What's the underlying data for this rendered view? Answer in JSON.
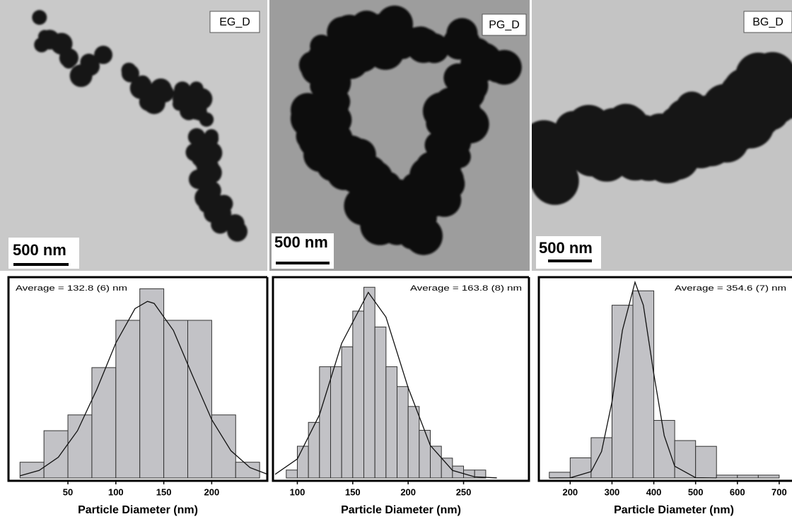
{
  "images": [
    {
      "label": "EG_D",
      "scale_bar": "500 nm"
    },
    {
      "label": "PG_D",
      "scale_bar": "500 nm"
    },
    {
      "label": "BG_D",
      "scale_bar": "500 nm"
    }
  ],
  "chart_data": [
    {
      "type": "histogram",
      "annotation": "Average = 132.8 (6) nm",
      "x_label": "Particle Diameter (nm)",
      "color": "#c2c2c6",
      "bins": [
        0,
        25,
        50,
        75,
        100,
        125,
        150,
        175,
        200,
        225,
        250
      ],
      "values": [
        1,
        3,
        4,
        7,
        10,
        12,
        10,
        10,
        4,
        1
      ],
      "curve": {
        "x": [
          0,
          20,
          40,
          60,
          80,
          100,
          120,
          133,
          140,
          160,
          180,
          200,
          220,
          240,
          258
        ],
        "y": [
          0.14,
          0.48,
          1.32,
          3.0,
          5.6,
          8.56,
          10.74,
          11.2,
          11.07,
          9.36,
          6.49,
          3.7,
          1.73,
          0.66,
          0.24
        ]
      },
      "xlim": [
        -12,
        258
      ],
      "xticks": [
        50,
        100,
        150,
        200
      ],
      "ylim": [
        0,
        12.6
      ]
    },
    {
      "type": "histogram",
      "annotation": "Average = 163.8 (8) nm",
      "x_label": "Particle Diameter (nm)",
      "color": "#c2c2c6",
      "bins": [
        90,
        100,
        110,
        120,
        130,
        140,
        150,
        160,
        170,
        180,
        190,
        200,
        210,
        220,
        230,
        240,
        250,
        260,
        270
      ],
      "values": [
        2,
        8,
        14,
        28,
        28,
        33,
        42,
        48,
        38,
        28,
        23,
        18,
        12,
        8,
        5,
        3,
        2,
        2
      ],
      "curve": {
        "x": [
          80,
          100,
          120,
          140,
          164,
          180,
          200,
          220,
          240,
          260,
          280
        ],
        "y": [
          0.93,
          4.8,
          15.9,
          33.9,
          46.7,
          40.5,
          22.7,
          8.2,
          1.9,
          0.28,
          0.03
        ]
      },
      "xlim": [
        78,
        309
      ],
      "xticks": [
        100,
        150,
        200,
        250
      ],
      "ylim": [
        0,
        50
      ]
    },
    {
      "type": "histogram",
      "annotation": "Average = 354.6 (7) nm",
      "x_label": "Particle Diameter (nm)",
      "color": "#c2c2c6",
      "bins": [
        150,
        200,
        250,
        300,
        350,
        400,
        450,
        500,
        550,
        600,
        650,
        700
      ],
      "values": [
        2,
        7,
        14,
        60,
        65,
        20,
        13,
        11,
        1,
        1,
        1
      ],
      "curve": {
        "x": [
          150,
          200,
          250,
          275,
          300,
          325,
          355,
          375,
          400,
          425,
          450,
          500,
          550
        ],
        "y": [
          0,
          0.04,
          2.2,
          9.2,
          26.4,
          51.3,
          68,
          60,
          36.1,
          14.7,
          4.1,
          0.1,
          0
        ]
      },
      "xlim": [
        125,
        734
      ],
      "xticks": [
        200,
        300,
        400,
        500,
        600,
        700
      ],
      "ylim": [
        0,
        69
      ]
    }
  ]
}
